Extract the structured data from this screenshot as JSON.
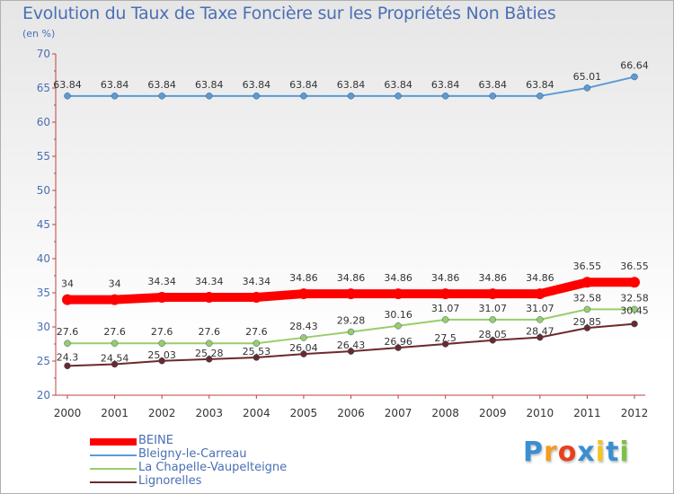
{
  "chart_data": {
    "type": "line",
    "title": "Evolution du Taux de Taxe Foncière sur les Propriétés Non Bâties",
    "ylabel": "(en %)",
    "xlabel": "",
    "ylim": [
      20,
      70
    ],
    "yticks": [
      "20",
      "25",
      "30",
      "35",
      "40",
      "45",
      "50",
      "55",
      "60",
      "65",
      "70"
    ],
    "categories": [
      "2000",
      "2001",
      "2002",
      "2003",
      "2004",
      "2005",
      "2006",
      "2007",
      "2008",
      "2009",
      "2010",
      "2011",
      "2012"
    ],
    "series": [
      {
        "name": "BEINE",
        "color": "#ff0000",
        "values": [
          34,
          34,
          34.34,
          34.34,
          34.34,
          34.86,
          34.86,
          34.86,
          34.86,
          34.86,
          34.86,
          36.55,
          36.55
        ],
        "labels": [
          "34",
          "34",
          "34.34",
          "34.34",
          "34.34",
          "34.86",
          "34.86",
          "34.86",
          "34.86",
          "34.86",
          "34.86",
          "36.55",
          "36.55"
        ]
      },
      {
        "name": "Bleigny-le-Carreau",
        "color": "#5b9bd5",
        "values": [
          63.84,
          63.84,
          63.84,
          63.84,
          63.84,
          63.84,
          63.84,
          63.84,
          63.84,
          63.84,
          63.84,
          65.01,
          66.64
        ],
        "labels": [
          "63.84",
          "63.84",
          "63.84",
          "63.84",
          "63.84",
          "63.84",
          "63.84",
          "63.84",
          "63.84",
          "63.84",
          "63.84",
          "65.01",
          "66.64"
        ]
      },
      {
        "name": "La Chapelle-Vaupelteigne",
        "color": "#9acd6a",
        "values": [
          27.6,
          27.6,
          27.6,
          27.6,
          27.6,
          28.43,
          29.28,
          30.16,
          31.07,
          31.07,
          31.07,
          32.58,
          32.58
        ],
        "labels": [
          "27.6",
          "27.6",
          "27.6",
          "27.6",
          "27.6",
          "28.43",
          "29.28",
          "30.16",
          "31.07",
          "31.07",
          "31.07",
          "32.58",
          "32.58"
        ]
      },
      {
        "name": "Lignorelles",
        "color": "#6b2a2a",
        "values": [
          24.3,
          24.54,
          25.03,
          25.28,
          25.53,
          26.04,
          26.43,
          26.96,
          27.5,
          28.05,
          28.47,
          29.85,
          30.45
        ],
        "labels": [
          "24.3",
          "24.54",
          "25.03",
          "25.28",
          "25.53",
          "26.04",
          "26.43",
          "26.96",
          "27.5",
          "28.05",
          "28.47",
          "29.85",
          "30.45"
        ]
      }
    ],
    "legend_position": "bottom-left",
    "grid": false
  },
  "logo": {
    "text": "Proxiti",
    "letters": [
      "P",
      "r",
      "o",
      "x",
      "i",
      "t",
      "i"
    ],
    "colors": [
      "#3a8fd1",
      "#f39c1f",
      "#e8401c",
      "#3a8fd1",
      "#f5c51d",
      "#3a8fd1",
      "#7cc243"
    ]
  }
}
